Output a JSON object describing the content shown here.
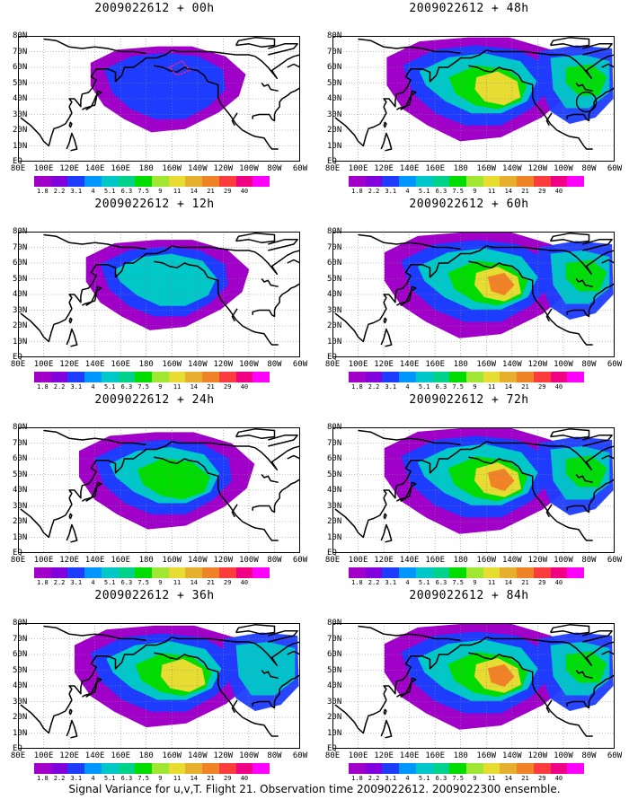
{
  "panels": [
    {
      "title": "2009022612 + 00h",
      "intensity": 0.25,
      "extent": 0.55,
      "marker": "box"
    },
    {
      "title": "2009022612 + 48h",
      "intensity": 0.75,
      "extent": 0.95,
      "marker": "circle"
    },
    {
      "title": "2009022612 + 12h",
      "intensity": 0.45,
      "extent": 0.65,
      "marker": "none"
    },
    {
      "title": "2009022612 + 60h",
      "intensity": 0.82,
      "extent": 1.0,
      "marker": "none"
    },
    {
      "title": "2009022612 + 24h",
      "intensity": 0.55,
      "extent": 0.8,
      "marker": "none"
    },
    {
      "title": "2009022612 + 72h",
      "intensity": 0.88,
      "extent": 1.0,
      "marker": "none"
    },
    {
      "title": "2009022612 + 36h",
      "intensity": 0.65,
      "extent": 0.9,
      "marker": "none"
    },
    {
      "title": "2009022612 + 84h",
      "intensity": 0.9,
      "extent": 1.0,
      "marker": "none"
    }
  ],
  "lat_labels": [
    "80N",
    "70N",
    "60N",
    "50N",
    "40N",
    "30N",
    "20N",
    "10N",
    "EQ"
  ],
  "lon_labels": [
    "80E",
    "100E",
    "120E",
    "140E",
    "160E",
    "180",
    "160W",
    "140W",
    "120W",
    "100W",
    "80W",
    "60W"
  ],
  "colorbar": {
    "labels": [
      "1.8",
      "2.2",
      "3.1",
      "4",
      "5.1",
      "6.3",
      "7.5",
      "9",
      "11",
      "14",
      "21",
      "29",
      "40"
    ],
    "colors": [
      "#a000c8",
      "#8200dc",
      "#1e3cff",
      "#0096ff",
      "#00c8c8",
      "#00d28c",
      "#00dc00",
      "#a0e632",
      "#e6dc32",
      "#e6af2d",
      "#f08228",
      "#fa3c3c",
      "#f00082",
      "#ff00ff"
    ]
  },
  "footer": "Signal Variance for u,v,T. Flight 21. Observation time 2009022612. 2009022300 ensemble."
}
